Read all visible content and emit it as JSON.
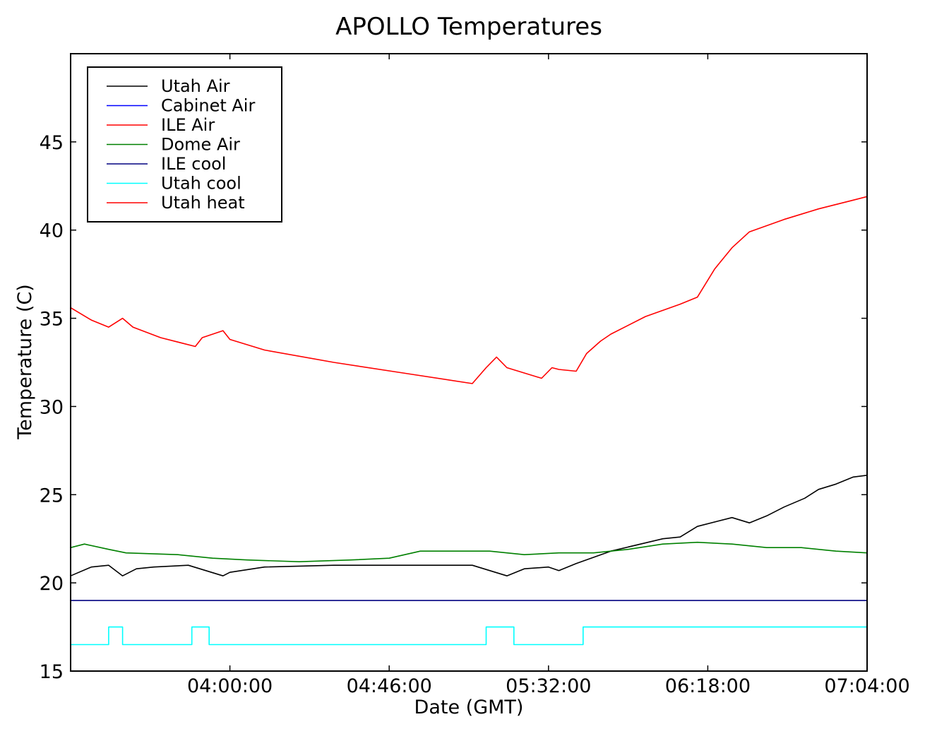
{
  "chart_data": {
    "type": "line",
    "title": "APOLLO Temperatures",
    "xlabel": "Date (GMT)",
    "ylabel": "Temperature (C)",
    "xlim": [
      "03:14:00",
      "07:04:00"
    ],
    "ylim": [
      15,
      50
    ],
    "x_ticks": [
      "04:00:00",
      "04:46:00",
      "05:32:00",
      "06:18:00",
      "07:04:00"
    ],
    "y_ticks": [
      15,
      20,
      25,
      30,
      35,
      40,
      45
    ],
    "grid": false,
    "legend_position": "upper-left",
    "colors": {
      "Utah Air": "#000000",
      "Cabinet Air": "#0000ff",
      "ILE Air": "#ff0000",
      "Dome Air": "#008000",
      "ILE cool": "#000080",
      "Utah cool": "#00ffff",
      "Utah heat": "#ff0000"
    },
    "series": [
      {
        "name": "Utah Air",
        "x": [
          "03:14:00",
          "03:20:00",
          "03:25:00",
          "03:29:00",
          "03:33:00",
          "03:38:00",
          "03:48:00",
          "03:58:00",
          "04:00:00",
          "04:10:00",
          "04:30:00",
          "05:00:00",
          "05:10:00",
          "05:20:00",
          "05:25:00",
          "05:32:00",
          "05:35:00",
          "05:40:00",
          "05:50:00",
          "06:05:00",
          "06:10:00",
          "06:15:00",
          "06:25:00",
          "06:30:00",
          "06:35:00",
          "06:40:00",
          "06:46:00",
          "06:50:00",
          "06:55:00",
          "07:00:00",
          "07:04:00"
        ],
        "y": [
          20.4,
          20.9,
          21.0,
          20.4,
          20.8,
          20.9,
          21.0,
          20.4,
          20.6,
          20.9,
          21.0,
          21.0,
          21.0,
          20.4,
          20.8,
          20.9,
          20.7,
          21.1,
          21.8,
          22.5,
          22.6,
          23.2,
          23.7,
          23.4,
          23.8,
          24.3,
          24.8,
          25.3,
          25.6,
          26.0,
          26.1
        ]
      },
      {
        "name": "Cabinet Air",
        "x": [
          "03:14:00",
          "07:04:00"
        ],
        "y": [
          15.0,
          15.0
        ]
      },
      {
        "name": "ILE Air",
        "x": [
          "03:14:00",
          "03:20:00",
          "03:25:00",
          "03:29:00",
          "03:32:00",
          "03:40:00",
          "03:50:00",
          "03:52:00",
          "03:58:00",
          "04:00:00",
          "04:10:00",
          "04:30:00",
          "04:50:00",
          "05:10:00",
          "05:14:00",
          "05:17:00",
          "05:20:00",
          "05:30:00",
          "05:33:00",
          "05:35:00",
          "05:40:00",
          "05:43:00",
          "05:47:00",
          "05:50:00",
          "06:00:00",
          "06:10:00",
          "06:15:00",
          "06:20:00",
          "06:25:00",
          "06:30:00",
          "06:40:00",
          "06:50:00",
          "07:00:00",
          "07:04:00"
        ],
        "y": [
          35.6,
          34.9,
          34.5,
          35.0,
          34.5,
          33.9,
          33.4,
          33.9,
          34.3,
          33.8,
          33.2,
          32.5,
          31.9,
          31.3,
          32.2,
          32.8,
          32.2,
          31.6,
          32.2,
          32.1,
          32.0,
          33.0,
          33.7,
          34.1,
          35.1,
          35.8,
          36.2,
          37.8,
          39.0,
          39.9,
          40.6,
          41.2,
          41.7,
          41.9
        ]
      },
      {
        "name": "Dome Air",
        "x": [
          "03:14:00",
          "03:18:00",
          "03:25:00",
          "03:30:00",
          "03:45:00",
          "03:55:00",
          "04:05:00",
          "04:20:00",
          "04:35:00",
          "04:46:00",
          "04:55:00",
          "05:05:00",
          "05:15:00",
          "05:25:00",
          "05:35:00",
          "05:45:00",
          "05:55:00",
          "06:05:00",
          "06:15:00",
          "06:25:00",
          "06:35:00",
          "06:45:00",
          "06:55:00",
          "07:04:00"
        ],
        "y": [
          22.0,
          22.2,
          21.9,
          21.7,
          21.6,
          21.4,
          21.3,
          21.2,
          21.3,
          21.4,
          21.8,
          21.8,
          21.8,
          21.6,
          21.7,
          21.7,
          21.9,
          22.2,
          22.3,
          22.2,
          22.0,
          22.0,
          21.8,
          21.7
        ]
      },
      {
        "name": "ILE cool",
        "x": [
          "03:14:00",
          "07:04:00"
        ],
        "y": [
          19.0,
          19.0
        ]
      },
      {
        "name": "Utah cool",
        "x": [
          "03:14:00",
          "03:25:00",
          "03:25:00",
          "03:29:00",
          "03:29:00",
          "03:49:00",
          "03:49:00",
          "03:54:00",
          "03:54:00",
          "05:14:00",
          "05:14:00",
          "05:22:00",
          "05:22:00",
          "05:42:00",
          "05:42:00",
          "07:04:00"
        ],
        "y": [
          16.5,
          16.5,
          17.5,
          17.5,
          16.5,
          16.5,
          17.5,
          17.5,
          16.5,
          16.5,
          17.5,
          17.5,
          16.5,
          16.5,
          17.5,
          17.5
        ]
      },
      {
        "name": "Utah heat",
        "x": [
          "03:14:00",
          "07:04:00"
        ],
        "y": [
          15.0,
          15.0
        ]
      }
    ]
  }
}
